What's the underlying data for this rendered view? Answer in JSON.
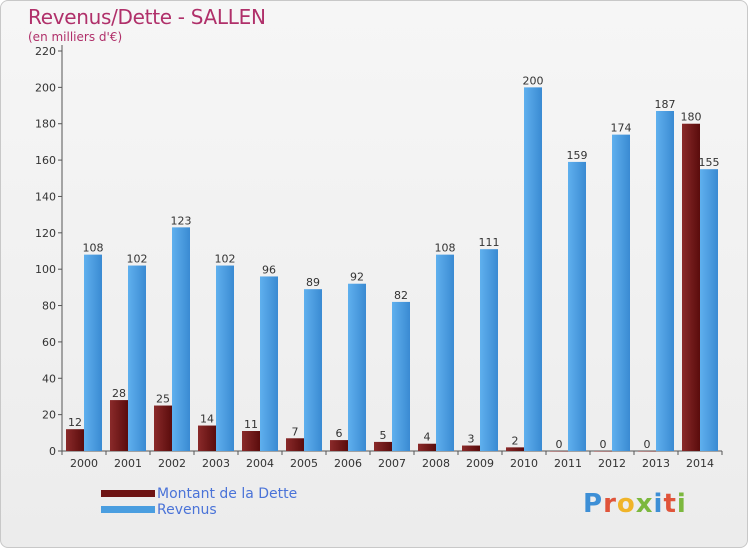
{
  "title": "Revenus/Dette - SALLEN",
  "subtitle": "(en milliers d'€)",
  "colors": {
    "dette": "#6e1414",
    "revenus": "#4a9ee0",
    "title": "#b0306a"
  },
  "legend": {
    "dette_label": "Montant de la Dette",
    "revenus_label": "Revenus"
  },
  "logo": {
    "text": "Proxiti"
  },
  "chart_data": {
    "type": "bar",
    "title": "Revenus/Dette - SALLEN",
    "ylabel": "(en milliers d'€)",
    "ylim": [
      0,
      220
    ],
    "yticks": [
      0,
      20,
      40,
      60,
      80,
      100,
      120,
      140,
      160,
      180,
      200,
      220
    ],
    "categories": [
      "2000",
      "2001",
      "2002",
      "2003",
      "2004",
      "2005",
      "2006",
      "2007",
      "2008",
      "2009",
      "2010",
      "2011",
      "2012",
      "2013",
      "2014"
    ],
    "series": [
      {
        "name": "Montant de la Dette",
        "values": [
          12,
          28,
          25,
          14,
          11,
          7,
          6,
          5,
          4,
          3,
          2,
          0,
          0,
          0,
          180
        ]
      },
      {
        "name": "Revenus",
        "values": [
          108,
          102,
          123,
          102,
          96,
          89,
          92,
          82,
          108,
          111,
          200,
          159,
          174,
          187,
          155
        ]
      }
    ],
    "legend_position": "bottom-left",
    "grid": false
  }
}
